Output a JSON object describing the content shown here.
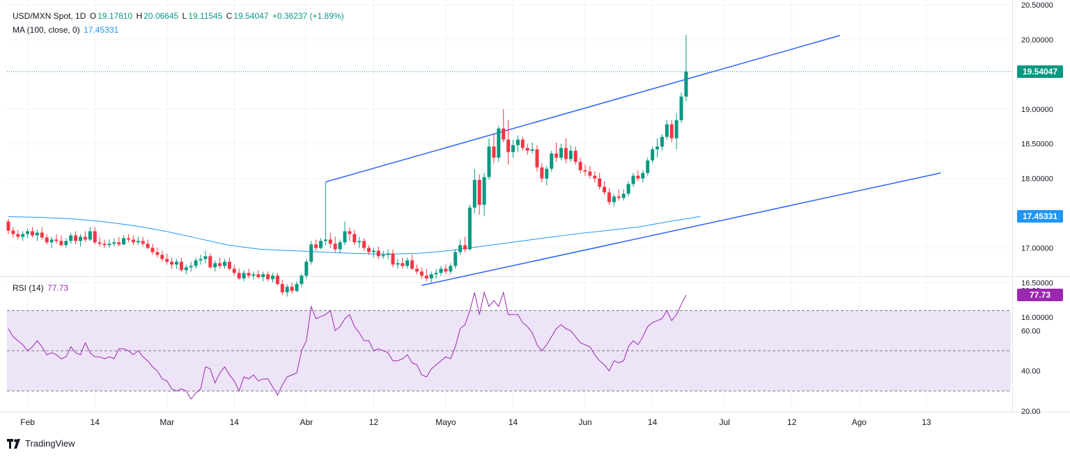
{
  "header": {
    "symbol": "USD/MXN Spot, 1D",
    "open_label": "O",
    "open": "19.17810",
    "high_label": "H",
    "high": "20.06645",
    "low_label": "L",
    "low": "19.11545",
    "close_label": "C",
    "close": "19.54047",
    "change": "+0.36237 (+1.89%)",
    "ma_label": "MA (100, close, 0)",
    "ma_value": "17.45331",
    "rsi_label": "RSI (14)",
    "rsi_value": "77.73"
  },
  "badges": {
    "last_price": "19.54047",
    "ma_price": "17.45331",
    "rsi_value": "77.73"
  },
  "brand": {
    "name": "TradingView"
  },
  "colors": {
    "up": "#089981",
    "down": "#f23645",
    "ma": "#2196f3",
    "trend": "#2962ff",
    "rsi": "#9c27b0",
    "rsi_band": "#ede4f7",
    "last": "#089981"
  },
  "chart_data": [
    {
      "type": "candlestick",
      "title": "USD/MXN Spot, 1D",
      "ylim": [
        15.95,
        20.55
      ],
      "y_ticks": [
        "20.50000",
        "20.00000",
        "19.00000",
        "18.50000",
        "18.00000",
        "17.00000",
        "16.50000",
        "16.00000"
      ],
      "x_ticks": [
        "Feb",
        "14",
        "Mar",
        "14",
        "Abr",
        "12",
        "Mayo",
        "14",
        "Jun",
        "14",
        "Jul",
        "12",
        "Ago",
        "13"
      ],
      "x_tick_index": [
        4,
        18,
        33,
        47,
        62,
        76,
        91,
        105,
        120,
        134,
        149,
        163,
        177,
        191
      ],
      "last_close": 19.54047,
      "candles": [
        [
          17.38,
          17.42,
          17.2,
          17.25
        ],
        [
          17.25,
          17.3,
          17.15,
          17.2
        ],
        [
          17.2,
          17.26,
          17.12,
          17.16
        ],
        [
          17.16,
          17.24,
          17.1,
          17.2
        ],
        [
          17.2,
          17.28,
          17.14,
          17.24
        ],
        [
          17.24,
          17.3,
          17.15,
          17.18
        ],
        [
          17.18,
          17.26,
          17.1,
          17.22
        ],
        [
          17.22,
          17.3,
          17.12,
          17.15
        ],
        [
          17.15,
          17.2,
          17.05,
          17.08
        ],
        [
          17.08,
          17.16,
          17.0,
          17.12
        ],
        [
          17.12,
          17.2,
          17.06,
          17.1
        ],
        [
          17.1,
          17.18,
          17.02,
          17.04
        ],
        [
          17.04,
          17.14,
          17.0,
          17.1
        ],
        [
          17.1,
          17.22,
          17.06,
          17.18
        ],
        [
          17.18,
          17.24,
          17.05,
          17.1
        ],
        [
          17.1,
          17.2,
          17.02,
          17.16
        ],
        [
          17.16,
          17.24,
          17.08,
          17.12
        ],
        [
          17.12,
          17.3,
          17.1,
          17.24
        ],
        [
          17.24,
          17.3,
          17.05,
          17.08
        ],
        [
          17.08,
          17.16,
          17.02,
          17.06
        ],
        [
          17.06,
          17.12,
          17.0,
          17.04
        ],
        [
          17.04,
          17.12,
          17.0,
          17.06
        ],
        [
          17.06,
          17.14,
          17.02,
          17.08
        ],
        [
          17.08,
          17.16,
          17.02,
          17.05
        ],
        [
          17.05,
          17.18,
          17.04,
          17.14
        ],
        [
          17.14,
          17.2,
          17.08,
          17.12
        ],
        [
          17.12,
          17.18,
          17.04,
          17.08
        ],
        [
          17.08,
          17.16,
          17.04,
          17.1
        ],
        [
          17.1,
          17.16,
          17.02,
          17.06
        ],
        [
          17.06,
          17.12,
          16.98,
          17.0
        ],
        [
          17.0,
          17.06,
          16.9,
          16.94
        ],
        [
          16.94,
          17.0,
          16.86,
          16.9
        ],
        [
          16.9,
          16.96,
          16.8,
          16.84
        ],
        [
          16.84,
          16.92,
          16.76,
          16.8
        ],
        [
          16.8,
          16.86,
          16.7,
          16.76
        ],
        [
          16.76,
          16.84,
          16.7,
          16.8
        ],
        [
          16.8,
          16.86,
          16.66,
          16.68
        ],
        [
          16.68,
          16.76,
          16.62,
          16.72
        ],
        [
          16.72,
          16.8,
          16.66,
          16.74
        ],
        [
          16.74,
          16.86,
          16.7,
          16.82
        ],
        [
          16.82,
          16.9,
          16.76,
          16.84
        ],
        [
          16.84,
          16.96,
          16.78,
          16.88
        ],
        [
          16.88,
          16.92,
          16.7,
          16.72
        ],
        [
          16.72,
          16.82,
          16.66,
          16.78
        ],
        [
          16.78,
          16.86,
          16.7,
          16.74
        ],
        [
          16.74,
          16.84,
          16.7,
          16.8
        ],
        [
          16.8,
          16.86,
          16.68,
          16.7
        ],
        [
          16.7,
          16.76,
          16.6,
          16.64
        ],
        [
          16.64,
          16.7,
          16.54,
          16.56
        ],
        [
          16.56,
          16.68,
          16.52,
          16.64
        ],
        [
          16.64,
          16.7,
          16.56,
          16.6
        ],
        [
          16.6,
          16.66,
          16.54,
          16.62
        ],
        [
          16.62,
          16.68,
          16.56,
          16.58
        ],
        [
          16.58,
          16.66,
          16.52,
          16.62
        ],
        [
          16.62,
          16.66,
          16.52,
          16.55
        ],
        [
          16.55,
          16.64,
          16.5,
          16.6
        ],
        [
          16.6,
          16.64,
          16.46,
          16.48
        ],
        [
          16.48,
          16.54,
          16.32,
          16.36
        ],
        [
          16.36,
          16.48,
          16.3,
          16.44
        ],
        [
          16.44,
          16.5,
          16.34,
          16.38
        ],
        [
          16.38,
          16.52,
          16.36,
          16.48
        ],
        [
          16.48,
          16.62,
          16.44,
          16.6
        ],
        [
          16.6,
          16.84,
          16.56,
          16.8
        ],
        [
          16.8,
          17.1,
          16.76,
          17.05
        ],
        [
          17.05,
          17.12,
          16.96,
          17.0
        ],
        [
          17.0,
          17.14,
          16.98,
          17.1
        ],
        [
          17.1,
          17.95,
          17.04,
          17.12
        ],
        [
          17.12,
          17.22,
          17.0,
          17.06
        ],
        [
          17.06,
          17.16,
          16.94,
          16.98
        ],
        [
          16.98,
          17.12,
          16.92,
          17.08
        ],
        [
          17.08,
          17.38,
          17.04,
          17.24
        ],
        [
          17.24,
          17.3,
          17.1,
          17.2
        ],
        [
          17.2,
          17.26,
          17.04,
          17.08
        ],
        [
          17.08,
          17.16,
          17.0,
          17.1
        ],
        [
          17.1,
          17.14,
          16.96,
          17.0
        ],
        [
          17.0,
          17.04,
          16.9,
          16.94
        ],
        [
          16.94,
          17.0,
          16.86,
          16.96
        ],
        [
          16.96,
          17.02,
          16.84,
          16.88
        ],
        [
          16.88,
          16.96,
          16.84,
          16.9
        ],
        [
          16.9,
          16.98,
          16.84,
          16.92
        ],
        [
          16.92,
          16.98,
          16.72,
          16.76
        ],
        [
          16.76,
          16.84,
          16.7,
          16.78
        ],
        [
          16.78,
          16.86,
          16.7,
          16.74
        ],
        [
          16.74,
          16.86,
          16.7,
          16.82
        ],
        [
          16.82,
          16.9,
          16.68,
          16.7
        ],
        [
          16.7,
          16.76,
          16.62,
          16.66
        ],
        [
          16.66,
          16.72,
          16.56,
          16.6
        ],
        [
          16.6,
          16.7,
          16.52,
          16.56
        ],
        [
          16.56,
          16.66,
          16.5,
          16.62
        ],
        [
          16.62,
          16.7,
          16.56,
          16.64
        ],
        [
          16.64,
          16.74,
          16.6,
          16.7
        ],
        [
          16.7,
          16.76,
          16.62,
          16.66
        ],
        [
          16.66,
          16.78,
          16.62,
          16.74
        ],
        [
          16.74,
          16.98,
          16.7,
          16.94
        ],
        [
          16.94,
          17.12,
          16.9,
          17.04
        ],
        [
          17.04,
          17.16,
          16.94,
          16.98
        ],
        [
          16.98,
          17.62,
          16.96,
          17.58
        ],
        [
          17.58,
          18.14,
          17.5,
          17.98
        ],
        [
          17.98,
          18.06,
          17.48,
          17.62
        ],
        [
          17.62,
          18.08,
          17.46,
          18.02
        ],
        [
          18.02,
          18.58,
          17.98,
          18.46
        ],
        [
          18.46,
          18.64,
          18.22,
          18.3
        ],
        [
          18.3,
          18.76,
          18.24,
          18.72
        ],
        [
          18.72,
          19.0,
          18.52,
          18.56
        ],
        [
          18.56,
          18.84,
          18.2,
          18.38
        ],
        [
          18.38,
          18.56,
          18.3,
          18.48
        ],
        [
          18.48,
          18.62,
          18.38,
          18.56
        ],
        [
          18.56,
          18.6,
          18.4,
          18.44
        ],
        [
          18.44,
          18.5,
          18.34,
          18.4
        ],
        [
          18.4,
          18.52,
          18.36,
          18.42
        ],
        [
          18.42,
          18.48,
          18.1,
          18.16
        ],
        [
          18.16,
          18.22,
          17.94,
          18.0
        ],
        [
          18.0,
          18.18,
          17.9,
          18.14
        ],
        [
          18.14,
          18.4,
          18.1,
          18.36
        ],
        [
          18.36,
          18.52,
          18.24,
          18.3
        ],
        [
          18.3,
          18.5,
          18.26,
          18.44
        ],
        [
          18.44,
          18.58,
          18.22,
          18.28
        ],
        [
          18.28,
          18.48,
          18.24,
          18.4
        ],
        [
          18.4,
          18.46,
          18.2,
          18.24
        ],
        [
          18.24,
          18.3,
          18.08,
          18.12
        ],
        [
          18.12,
          18.2,
          18.04,
          18.1
        ],
        [
          18.1,
          18.18,
          18.0,
          18.04
        ],
        [
          18.04,
          18.1,
          17.94,
          18.0
        ],
        [
          18.0,
          18.08,
          17.84,
          17.88
        ],
        [
          17.88,
          17.96,
          17.76,
          17.8
        ],
        [
          17.8,
          17.86,
          17.62,
          17.66
        ],
        [
          17.66,
          17.78,
          17.6,
          17.74
        ],
        [
          17.74,
          17.84,
          17.68,
          17.72
        ],
        [
          17.72,
          17.84,
          17.68,
          17.78
        ],
        [
          17.78,
          17.96,
          17.74,
          17.92
        ],
        [
          17.92,
          18.08,
          17.88,
          18.04
        ],
        [
          18.04,
          18.12,
          17.96,
          18.0
        ],
        [
          18.0,
          18.12,
          17.94,
          18.08
        ],
        [
          18.08,
          18.3,
          18.04,
          18.26
        ],
        [
          18.26,
          18.46,
          18.22,
          18.42
        ],
        [
          18.42,
          18.58,
          18.3,
          18.46
        ],
        [
          18.46,
          18.64,
          18.4,
          18.6
        ],
        [
          18.6,
          18.84,
          18.56,
          18.78
        ],
        [
          18.78,
          18.84,
          18.52,
          18.58
        ],
        [
          18.58,
          18.94,
          18.42,
          18.84
        ],
        [
          18.84,
          19.24,
          18.8,
          19.18
        ],
        [
          19.18,
          20.06645,
          19.11545,
          19.54047
        ]
      ],
      "ma100": [
        17.45,
        17.44,
        17.42,
        17.38,
        17.32,
        17.24,
        17.14,
        17.04,
        16.98,
        16.96,
        16.94,
        16.92,
        16.91,
        16.92,
        16.96,
        17.02,
        17.08,
        17.14,
        17.2,
        17.25,
        17.3,
        17.38,
        17.45331
      ],
      "trendlines": [
        {
          "from": {
            "i": 66,
            "v": 17.95
          },
          "to": {
            "i": 173,
            "v": 20.06
          }
        },
        {
          "from": {
            "i": 86,
            "v": 16.46
          },
          "to": {
            "i": 194,
            "v": 18.08
          }
        }
      ]
    },
    {
      "type": "line",
      "title": "RSI (14)",
      "ylim": [
        20,
        82
      ],
      "y_ticks": [
        "80.00",
        "60.00",
        "40.00",
        "20.00"
      ],
      "levels": [
        70,
        50,
        30
      ],
      "values": [
        61,
        57,
        55,
        53,
        50,
        52,
        55,
        52,
        48,
        49,
        48,
        46,
        47,
        52,
        49,
        48,
        54,
        49,
        47,
        47,
        46,
        47,
        46,
        51,
        51,
        50,
        48,
        50,
        47,
        45,
        42,
        40,
        36,
        35,
        31,
        30,
        31,
        30,
        26,
        29,
        31,
        42,
        41,
        34,
        39,
        42,
        38,
        35,
        30,
        37,
        36,
        38,
        35,
        36,
        36,
        32,
        28,
        33,
        37,
        38,
        39,
        50,
        55,
        72,
        66,
        67,
        68,
        70,
        60,
        62,
        66,
        68,
        62,
        59,
        55,
        55,
        50,
        51,
        50,
        49,
        45,
        45,
        46,
        48,
        44,
        43,
        38,
        37,
        41,
        43,
        45,
        47,
        46,
        52,
        61,
        63,
        70,
        79,
        68,
        79,
        72,
        75,
        72,
        79,
        68,
        68,
        68,
        64,
        62,
        59,
        53,
        50,
        53,
        57,
        61,
        63,
        61,
        60,
        57,
        54,
        53,
        52,
        48,
        45,
        43,
        40,
        45,
        44,
        45,
        52,
        55,
        53,
        57,
        62,
        64,
        65,
        66,
        70,
        65,
        68,
        73,
        77.73
      ]
    }
  ]
}
